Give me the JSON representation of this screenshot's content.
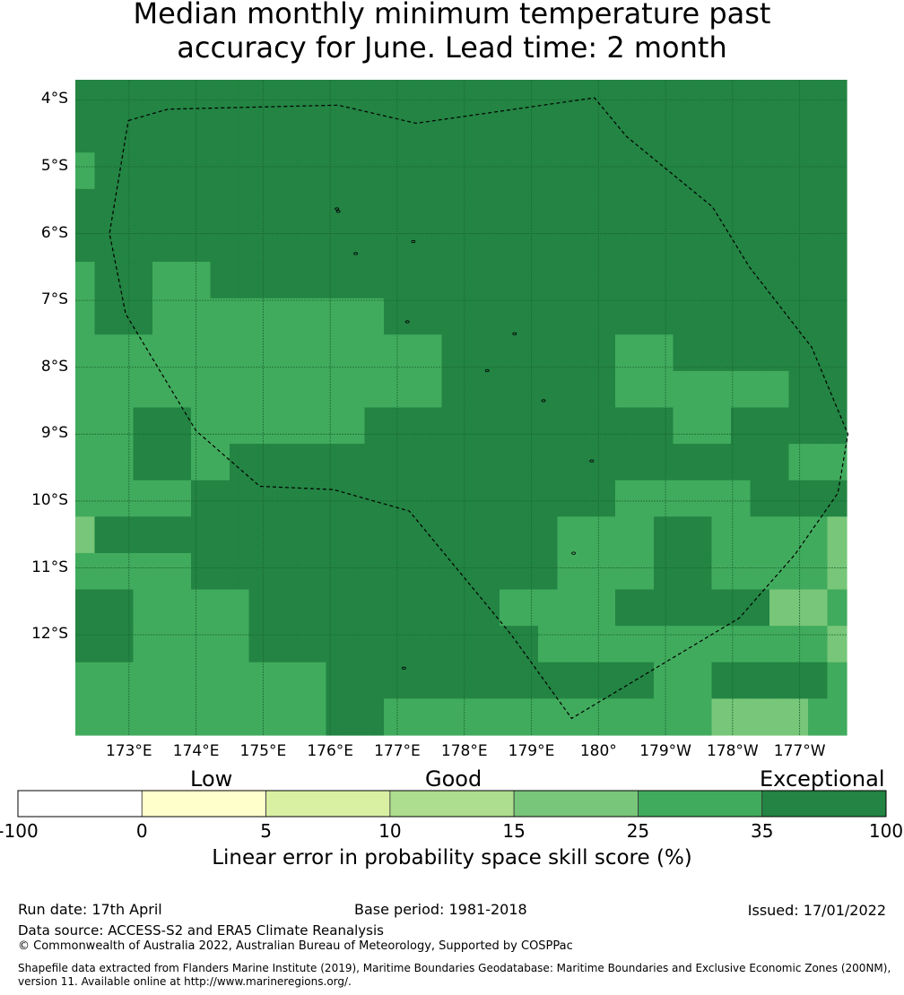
{
  "title_line1": "Median monthly minimum temperature past",
  "title_line2": "accuracy for June. Lead time: 2 month",
  "map": {
    "lat_labels": [
      "4°S",
      "5°S",
      "6°S",
      "7°S",
      "8°S",
      "9°S",
      "10°S",
      "11°S",
      "12°S"
    ],
    "lon_labels": [
      "173°E",
      "174°E",
      "175°E",
      "176°E",
      "177°E",
      "178°E",
      "179°E",
      "180°",
      "179°W",
      "178°W",
      "177°W"
    ],
    "colors": [
      "#ffffff",
      "#ffffcc",
      "#d9f0a3",
      "#addd8e",
      "#78c679",
      "#41ab5d",
      "#238443"
    ],
    "grid_classes": [
      [
        6,
        6,
        6,
        6,
        6,
        6,
        6,
        6,
        6,
        6,
        6,
        6,
        6,
        6,
        6,
        6,
        6,
        6,
        6,
        6,
        6,
        6,
        6,
        6,
        6,
        6,
        6,
        6,
        6,
        6,
        6,
        6,
        6,
        6,
        6,
        6,
        6,
        6,
        6,
        6,
        6,
        6,
        6,
        6,
        6,
        6,
        6,
        6,
        6,
        6,
        6,
        6,
        6,
        6,
        6,
        6,
        6,
        6,
        6,
        6,
        6,
        6,
        6,
        6,
        6,
        6,
        6,
        6,
        6,
        6,
        6,
        6,
        6,
        6,
        6,
        6,
        6,
        6,
        6,
        6
      ],
      [
        6,
        6,
        6,
        6,
        6,
        6,
        6,
        6,
        6,
        6,
        6,
        6,
        6,
        6,
        6,
        6,
        6,
        6,
        6,
        6,
        6,
        6,
        6,
        6,
        6,
        6,
        6,
        6,
        6,
        6,
        6,
        6,
        6,
        6,
        6,
        6,
        6,
        6,
        6,
        6,
        6,
        6,
        6,
        6,
        6,
        6,
        6,
        6,
        6,
        6,
        6,
        6,
        6,
        6,
        6,
        6,
        6,
        6,
        6,
        6,
        6,
        6,
        6,
        6,
        6,
        6,
        6,
        6,
        6,
        6,
        6,
        6,
        6,
        6,
        6,
        6,
        6,
        6,
        6,
        6
      ],
      [
        5,
        5,
        6,
        6,
        6,
        6,
        6,
        6,
        6,
        6,
        6,
        6,
        6,
        6,
        6,
        6,
        6,
        6,
        6,
        6,
        6,
        6,
        6,
        6,
        6,
        6,
        6,
        6,
        6,
        6,
        6,
        6,
        6,
        6,
        6,
        6,
        6,
        6,
        6,
        6,
        6,
        6,
        6,
        6,
        6,
        6,
        6,
        6,
        6,
        6,
        6,
        6,
        6,
        6,
        6,
        6,
        6,
        6,
        6,
        6,
        6,
        6,
        6,
        6,
        6,
        6,
        6,
        6,
        6,
        6,
        6,
        6,
        6,
        6,
        6,
        6,
        6,
        6,
        6,
        6
      ],
      [
        6,
        6,
        6,
        6,
        6,
        6,
        6,
        6,
        6,
        6,
        6,
        6,
        6,
        6,
        6,
        6,
        6,
        6,
        6,
        6,
        6,
        6,
        6,
        6,
        6,
        6,
        6,
        6,
        6,
        6,
        6,
        6,
        6,
        6,
        6,
        6,
        6,
        6,
        6,
        6,
        6,
        6,
        6,
        6,
        6,
        6,
        6,
        6,
        6,
        6,
        6,
        6,
        6,
        6,
        6,
        6,
        6,
        6,
        6,
        6,
        6,
        6,
        6,
        6,
        6,
        6,
        6,
        6,
        6,
        6,
        6,
        6,
        6,
        6,
        6,
        6,
        6,
        6,
        6,
        6
      ],
      [
        6,
        6,
        6,
        6,
        6,
        6,
        6,
        6,
        6,
        6,
        6,
        6,
        6,
        6,
        6,
        6,
        6,
        6,
        6,
        6,
        6,
        6,
        6,
        6,
        6,
        6,
        6,
        6,
        6,
        6,
        6,
        6,
        6,
        6,
        6,
        6,
        6,
        6,
        6,
        6,
        6,
        6,
        6,
        6,
        6,
        6,
        6,
        6,
        6,
        6,
        6,
        6,
        6,
        6,
        6,
        6,
        6,
        6,
        6,
        6,
        6,
        6,
        6,
        6,
        6,
        6,
        6,
        6,
        6,
        6,
        6,
        6,
        6,
        6,
        6,
        6,
        6,
        6,
        6,
        6
      ],
      [
        5,
        5,
        6,
        6,
        6,
        6,
        6,
        6,
        5,
        5,
        5,
        5,
        5,
        5,
        6,
        6,
        6,
        6,
        6,
        6,
        6,
        6,
        6,
        6,
        6,
        6,
        6,
        6,
        6,
        6,
        6,
        6,
        6,
        6,
        6,
        6,
        6,
        6,
        6,
        6,
        6,
        6,
        6,
        6,
        6,
        6,
        6,
        6,
        6,
        6,
        6,
        6,
        6,
        6,
        6,
        6,
        6,
        6,
        6,
        6,
        6,
        6,
        6,
        6,
        6,
        6,
        6,
        6,
        6,
        6,
        6,
        6,
        6,
        6,
        6,
        6,
        6,
        6,
        6,
        6
      ],
      [
        5,
        5,
        6,
        6,
        6,
        6,
        6,
        6,
        5,
        5,
        5,
        5,
        5,
        5,
        5,
        5,
        5,
        5,
        5,
        5,
        5,
        5,
        5,
        5,
        5,
        5,
        5,
        5,
        5,
        5,
        5,
        5,
        6,
        6,
        6,
        6,
        6,
        6,
        6,
        6,
        6,
        6,
        6,
        6,
        6,
        6,
        6,
        6,
        6,
        6,
        6,
        6,
        6,
        6,
        6,
        6,
        6,
        6,
        6,
        6,
        6,
        6,
        6,
        6,
        6,
        6,
        6,
        6,
        6,
        6,
        6,
        6,
        6,
        6,
        6,
        6,
        6,
        6,
        6,
        6
      ],
      [
        5,
        5,
        5,
        5,
        5,
        5,
        5,
        5,
        5,
        5,
        5,
        5,
        5,
        5,
        5,
        5,
        5,
        5,
        5,
        5,
        5,
        5,
        5,
        5,
        5,
        5,
        5,
        5,
        5,
        5,
        5,
        5,
        5,
        5,
        5,
        5,
        5,
        5,
        6,
        6,
        6,
        6,
        6,
        6,
        6,
        6,
        6,
        6,
        6,
        6,
        6,
        6,
        6,
        6,
        6,
        6,
        5,
        5,
        5,
        5,
        5,
        5,
        6,
        6,
        6,
        6,
        6,
        6,
        6,
        6,
        6,
        6,
        6,
        6,
        6,
        6,
        6,
        6,
        6,
        6
      ],
      [
        5,
        5,
        5,
        5,
        5,
        5,
        5,
        5,
        5,
        5,
        5,
        5,
        5,
        5,
        5,
        5,
        5,
        5,
        5,
        5,
        5,
        5,
        5,
        5,
        5,
        5,
        5,
        5,
        5,
        5,
        5,
        5,
        5,
        5,
        5,
        5,
        5,
        5,
        6,
        6,
        6,
        6,
        6,
        6,
        6,
        6,
        6,
        6,
        6,
        6,
        6,
        6,
        6,
        6,
        6,
        6,
        5,
        5,
        5,
        5,
        5,
        5,
        5,
        5,
        5,
        5,
        5,
        5,
        5,
        5,
        5,
        5,
        5,
        5,
        6,
        6,
        6,
        6,
        6,
        6
      ],
      [
        5,
        5,
        5,
        5,
        5,
        5,
        6,
        6,
        6,
        6,
        6,
        6,
        5,
        5,
        5,
        5,
        5,
        5,
        5,
        5,
        5,
        5,
        5,
        5,
        5,
        5,
        5,
        5,
        5,
        5,
        6,
        6,
        6,
        6,
        6,
        6,
        6,
        6,
        6,
        6,
        6,
        6,
        6,
        6,
        6,
        6,
        6,
        6,
        6,
        6,
        6,
        6,
        6,
        6,
        6,
        6,
        6,
        6,
        6,
        6,
        6,
        6,
        5,
        5,
        5,
        5,
        5,
        5,
        6,
        6,
        6,
        6,
        6,
        6,
        6,
        6,
        6,
        6,
        6,
        6
      ],
      [
        5,
        5,
        5,
        5,
        5,
        5,
        6,
        6,
        6,
        6,
        6,
        6,
        5,
        5,
        5,
        5,
        6,
        6,
        6,
        6,
        6,
        6,
        6,
        6,
        6,
        6,
        6,
        6,
        6,
        6,
        6,
        6,
        6,
        6,
        6,
        6,
        6,
        6,
        6,
        6,
        6,
        6,
        6,
        6,
        6,
        6,
        6,
        6,
        6,
        6,
        6,
        6,
        6,
        6,
        6,
        6,
        6,
        6,
        6,
        6,
        6,
        6,
        6,
        6,
        6,
        6,
        6,
        6,
        6,
        6,
        6,
        6,
        6,
        6,
        5,
        5,
        5,
        5,
        5,
        5
      ],
      [
        5,
        5,
        5,
        5,
        5,
        5,
        5,
        5,
        5,
        5,
        5,
        5,
        6,
        6,
        6,
        6,
        6,
        6,
        6,
        6,
        6,
        6,
        6,
        6,
        6,
        6,
        6,
        6,
        6,
        6,
        6,
        6,
        6,
        6,
        6,
        6,
        6,
        6,
        6,
        6,
        6,
        6,
        6,
        6,
        6,
        6,
        6,
        6,
        6,
        6,
        6,
        6,
        6,
        6,
        6,
        6,
        5,
        5,
        5,
        5,
        5,
        5,
        5,
        5,
        5,
        5,
        5,
        5,
        5,
        5,
        6,
        6,
        6,
        6,
        6,
        6,
        6,
        6,
        6,
        6
      ],
      [
        4,
        4,
        6,
        6,
        6,
        6,
        6,
        6,
        6,
        6,
        6,
        6,
        6,
        6,
        6,
        6,
        6,
        6,
        6,
        6,
        6,
        6,
        6,
        6,
        6,
        6,
        6,
        6,
        6,
        6,
        6,
        6,
        6,
        6,
        6,
        6,
        6,
        6,
        6,
        6,
        6,
        6,
        6,
        6,
        6,
        6,
        6,
        6,
        6,
        6,
        5,
        5,
        5,
        5,
        5,
        5,
        5,
        5,
        5,
        5,
        6,
        6,
        6,
        6,
        6,
        6,
        5,
        5,
        5,
        5,
        5,
        5,
        5,
        5,
        5,
        5,
        5,
        5,
        4,
        4
      ],
      [
        5,
        5,
        5,
        5,
        5,
        5,
        5,
        5,
        5,
        5,
        5,
        5,
        6,
        6,
        6,
        6,
        6,
        6,
        6,
        6,
        6,
        6,
        6,
        6,
        6,
        6,
        6,
        6,
        6,
        6,
        6,
        6,
        6,
        6,
        6,
        6,
        6,
        6,
        6,
        6,
        6,
        6,
        6,
        6,
        6,
        6,
        6,
        6,
        6,
        6,
        5,
        5,
        5,
        5,
        5,
        5,
        5,
        5,
        5,
        5,
        6,
        6,
        6,
        6,
        6,
        6,
        5,
        5,
        5,
        5,
        5,
        5,
        5,
        5,
        5,
        5,
        5,
        5,
        4,
        4
      ],
      [
        6,
        6,
        6,
        6,
        6,
        6,
        5,
        5,
        5,
        5,
        5,
        5,
        5,
        5,
        5,
        5,
        5,
        5,
        6,
        6,
        6,
        6,
        6,
        6,
        6,
        6,
        6,
        6,
        6,
        6,
        6,
        6,
        6,
        6,
        6,
        6,
        6,
        6,
        6,
        6,
        6,
        6,
        6,
        6,
        5,
        5,
        5,
        5,
        5,
        5,
        5,
        5,
        5,
        5,
        5,
        5,
        6,
        6,
        6,
        6,
        6,
        6,
        6,
        6,
        6,
        6,
        6,
        6,
        6,
        6,
        6,
        6,
        4,
        4,
        4,
        4,
        4,
        4,
        5,
        5
      ],
      [
        6,
        6,
        6,
        6,
        6,
        6,
        5,
        5,
        5,
        5,
        5,
        5,
        5,
        5,
        5,
        5,
        5,
        5,
        6,
        6,
        6,
        6,
        6,
        6,
        6,
        6,
        6,
        6,
        6,
        6,
        6,
        6,
        6,
        6,
        6,
        6,
        6,
        6,
        6,
        6,
        6,
        6,
        6,
        6,
        6,
        6,
        6,
        6,
        5,
        5,
        5,
        5,
        5,
        5,
        5,
        5,
        5,
        5,
        5,
        5,
        5,
        5,
        5,
        5,
        5,
        5,
        5,
        5,
        5,
        5,
        5,
        5,
        5,
        5,
        5,
        5,
        5,
        5,
        4,
        4
      ],
      [
        5,
        5,
        5,
        5,
        5,
        5,
        5,
        5,
        5,
        5,
        5,
        5,
        5,
        5,
        5,
        5,
        5,
        5,
        5,
        5,
        5,
        5,
        5,
        5,
        5,
        5,
        6,
        6,
        6,
        6,
        6,
        6,
        6,
        6,
        6,
        6,
        6,
        6,
        6,
        6,
        6,
        6,
        6,
        6,
        6,
        6,
        6,
        6,
        6,
        6,
        6,
        6,
        6,
        6,
        6,
        6,
        6,
        6,
        6,
        6,
        5,
        5,
        5,
        5,
        5,
        5,
        6,
        6,
        6,
        6,
        6,
        6,
        6,
        6,
        6,
        6,
        6,
        6,
        5,
        5
      ],
      [
        5,
        5,
        5,
        5,
        5,
        5,
        5,
        5,
        5,
        5,
        5,
        5,
        5,
        5,
        5,
        5,
        5,
        5,
        5,
        5,
        5,
        5,
        5,
        5,
        5,
        5,
        6,
        6,
        6,
        6,
        6,
        6,
        5,
        5,
        5,
        5,
        5,
        5,
        5,
        5,
        5,
        5,
        5,
        5,
        5,
        5,
        5,
        5,
        5,
        5,
        5,
        5,
        5,
        5,
        5,
        5,
        5,
        5,
        5,
        5,
        5,
        5,
        5,
        5,
        5,
        5,
        4,
        4,
        4,
        4,
        4,
        4,
        4,
        4,
        4,
        4,
        5,
        5,
        5,
        5
      ]
    ],
    "boundary": [
      [
        172.99,
        -4.31
      ],
      [
        173.58,
        -4.14
      ],
      [
        176.12,
        -4.08
      ],
      [
        177.28,
        -4.35
      ],
      [
        179.94,
        -3.97
      ],
      [
        180.42,
        -4.55
      ],
      [
        181.7,
        -5.6
      ],
      [
        182.25,
        -6.5
      ],
      [
        183.18,
        -7.7
      ],
      [
        183.72,
        -9.0
      ],
      [
        183.57,
        -9.88
      ],
      [
        182.93,
        -10.8
      ],
      [
        182.1,
        -11.75
      ],
      [
        179.6,
        -13.25
      ],
      [
        178.7,
        -12.0
      ],
      [
        177.18,
        -10.15
      ],
      [
        176.05,
        -9.83
      ],
      [
        174.95,
        -9.78
      ],
      [
        174.0,
        -8.95
      ],
      [
        172.95,
        -7.2
      ],
      [
        172.71,
        -6.0
      ],
      [
        172.99,
        -4.31
      ]
    ],
    "islands": [
      [
        176.1,
        -5.63
      ],
      [
        176.12,
        -5.67
      ],
      [
        177.24,
        -6.12
      ],
      [
        176.38,
        -6.3
      ],
      [
        177.15,
        -7.32
      ],
      [
        178.75,
        -7.5
      ],
      [
        178.34,
        -8.05
      ],
      [
        179.18,
        -8.5
      ],
      [
        179.9,
        -9.4
      ],
      [
        177.1,
        -12.5
      ],
      [
        179.63,
        -10.78
      ]
    ]
  },
  "colorbar": {
    "category_labels": [
      "Low",
      "Good",
      "Exceptional"
    ],
    "tick_labels": [
      "-100",
      "0",
      "5",
      "10",
      "15",
      "25",
      "35",
      "100"
    ],
    "title": "Linear error in probability space skill score (%)"
  },
  "footer": {
    "run_date": "Run date: 17th April",
    "base_period": "Base period: 1981-2018",
    "issued": "Issued: 17/01/2022",
    "data_source": "Data source: ACCESS-S2 and ERA5 Climate Reanalysis",
    "copyright": "© Commonwealth of Australia 2022, Australian Bureau of Meteorology, Supported by COSPPac",
    "shapefile_line1": "Shapefile data extracted from Flanders Marine Institute (2019), Maritime Boundaries Geodatabase: Maritime Boundaries and Exclusive Economic Zones (200NM),",
    "shapefile_line2": "version 11. Available online at http://www.marineregions.org/."
  }
}
